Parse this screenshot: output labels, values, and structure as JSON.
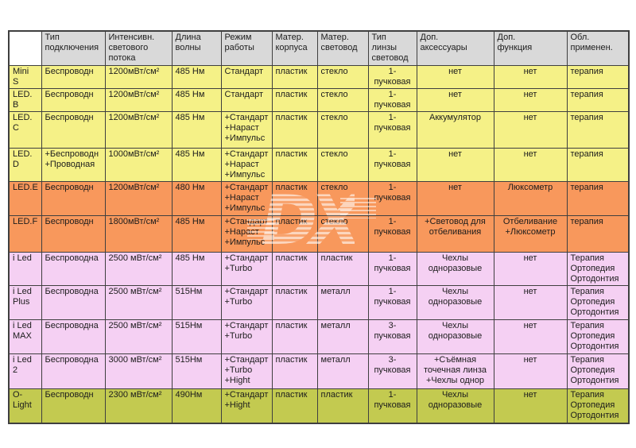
{
  "watermark": {
    "text": "DX"
  },
  "colors": {
    "yellow": "#f5f187",
    "orange": "#f8985c",
    "pink": "#f5d0f3",
    "olive": "#c3ca50",
    "header": "#d9d9d9",
    "border": "#3f3f3f"
  },
  "table": {
    "headers": [
      "",
      "Тип\nподключения",
      "Интенсивн.\nсветового\nпотока",
      "Длина\nволны",
      "Режим\nработы",
      "Матер.\nкорпуса",
      "Матер.\nсветовод",
      "Тип\nлинзы\nсветовод",
      "Доп.\nаксессуары",
      "Доп.\nфункция",
      "Обл.\nприменен."
    ],
    "rows": [
      {
        "color": "yellow",
        "cells": [
          "Mini\nS",
          "Беспроводн",
          "1200мВт/см²",
          "485 Нм",
          "Стандарт",
          "пластик",
          "стекло",
          "1-\nпучковая",
          "нет",
          "нет",
          "терапия"
        ]
      },
      {
        "color": "yellow",
        "cells": [
          "LED.\nB",
          "Беспроводн",
          "1200мВт/см²",
          "485 Нм",
          "Стандарт",
          "пластик",
          "стекло",
          "1-\nпучковая",
          "нет",
          "нет",
          "терапия"
        ]
      },
      {
        "color": "yellow",
        "cells": [
          "LED.\nC",
          "Беспроводн",
          "1200мВт/см²",
          "485 Нм",
          "+Стандарт\n+Нараст\n+Импульс",
          "пластик",
          "стекло",
          "1-\nпучковая",
          "Аккумулятор",
          "нет",
          "терапия"
        ]
      },
      {
        "color": "yellow",
        "cells": [
          "LED.\nD",
          "+Беспроводн\n+Проводная",
          "1000мВт/см²",
          "485 Нм",
          "+Стандарт\n+Нараст\n+Импульс",
          "пластик",
          "стекло",
          "1-\nпучковая",
          "нет",
          "нет",
          "терапия"
        ]
      },
      {
        "color": "orange",
        "cells": [
          "LED.E",
          "Беспроводн",
          "1200мВт/см²",
          "480 Нм",
          "+Стандарт\n+Нараст\n+Импульс",
          "пластик",
          "стекло",
          "1-\nпучковая",
          "нет",
          "Люксометр",
          "терапия"
        ]
      },
      {
        "color": "orange",
        "cells": [
          "LED.F",
          "Беспроводн",
          "1800мВт/см²",
          "485 Нм",
          "+Стандарт\n+Нараст\n+Импульс",
          "пластик",
          "стекло",
          "1-\nпучковая",
          "+Световод для\nотбеливания",
          "Отбеливание\n+Люксометр",
          "терапия"
        ]
      },
      {
        "color": "pink",
        "cells": [
          "i Led",
          "Беспроводна",
          "2500 мВт/см²",
          "485 Нм",
          "+Стандарт\n+Turbo",
          "пластик",
          "пластик",
          "1-\nпучковая",
          "Чехлы\nодноразовые",
          "нет",
          "Терапия\nОртопедия\nОртодонтия"
        ]
      },
      {
        "color": "pink",
        "cells": [
          "i Led\nPlus",
          "Беспроводна",
          "2500 мВт/см²",
          "515Нм",
          "+Стандарт\n+Turbo",
          "пластик",
          "металл",
          "1-\nпучковая",
          "Чехлы\nодноразовые",
          "нет",
          "Терапия\nОртопедия\nОртодонтия"
        ]
      },
      {
        "color": "pink",
        "cells": [
          "i Led\nMAX",
          "Беспроводна",
          "2500 мВт/см²",
          "515Нм",
          "+Стандарт\n+Turbo",
          "пластик",
          "металл",
          "3-\nпучковая",
          "Чехлы\nодноразовые",
          "нет",
          "Терапия\nОртопедия\nОртодонтия"
        ]
      },
      {
        "color": "pink",
        "cells": [
          "i Led\n2",
          "Беспроводна",
          "3000 мВт/см²",
          "515Нм",
          "+Стандарт\n+Turbo\n+Hight",
          "пластик",
          "металл",
          "3-\nпучковая",
          "+Съёмная\nточечная линза\n+Чехлы однор",
          "нет",
          "Терапия\nОртопедия\nОртодонтия"
        ]
      },
      {
        "color": "olive",
        "cells": [
          "O-\nLight",
          "Беспроводн",
          "2300 мВт/см²",
          "490Нм",
          "+Стандарт\n+Hight",
          "пластик",
          "пластик",
          "1-\nпучковая",
          "Чехлы\nодноразовые",
          "нет",
          "Терапия\nОртопедия\nОртодонтия"
        ]
      }
    ]
  },
  "chart_data": {
    "type": "table",
    "columns": [
      "",
      "Тип подключения",
      "Интенсивн. светового потока",
      "Длина волны",
      "Режим работы",
      "Матер. корпуса",
      "Матер. световод",
      "Тип линзы световод",
      "Доп. аксессуары",
      "Доп. функция",
      "Обл. применен."
    ],
    "rows": [
      [
        "Mini S",
        "Беспроводн",
        "1200мВт/см²",
        "485 Нм",
        "Стандарт",
        "пластик",
        "стекло",
        "1-пучковая",
        "нет",
        "нет",
        "терапия"
      ],
      [
        "LED. B",
        "Беспроводн",
        "1200мВт/см²",
        "485 Нм",
        "Стандарт",
        "пластик",
        "стекло",
        "1-пучковая",
        "нет",
        "нет",
        "терапия"
      ],
      [
        "LED. C",
        "Беспроводн",
        "1200мВт/см²",
        "485 Нм",
        "+Стандарт +Нараст +Импульс",
        "пластик",
        "стекло",
        "1-пучковая",
        "Аккумулятор",
        "нет",
        "терапия"
      ],
      [
        "LED. D",
        "+Беспроводн +Проводная",
        "1000мВт/см²",
        "485 Нм",
        "+Стандарт +Нараст +Импульс",
        "пластик",
        "стекло",
        "1-пучковая",
        "нет",
        "нет",
        "терапия"
      ],
      [
        "LED.E",
        "Беспроводн",
        "1200мВт/см²",
        "480 Нм",
        "+Стандарт +Нараст +Импульс",
        "пластик",
        "стекло",
        "1-пучковая",
        "нет",
        "Люксометр",
        "терапия"
      ],
      [
        "LED.F",
        "Беспроводн",
        "1800мВт/см²",
        "485 Нм",
        "+Стандарт +Нараст +Импульс",
        "пластик",
        "стекло",
        "1-пучковая",
        "+Световод для отбеливания",
        "Отбеливание +Люксометр",
        "терапия"
      ],
      [
        "i Led",
        "Беспроводна",
        "2500 мВт/см²",
        "485 Нм",
        "+Стандарт +Turbo",
        "пластик",
        "пластик",
        "1-пучковая",
        "Чехлы одноразовые",
        "нет",
        "Терапия Ортопедия Ортодонтия"
      ],
      [
        "i Led Plus",
        "Беспроводна",
        "2500 мВт/см²",
        "515Нм",
        "+Стандарт +Turbo",
        "пластик",
        "металл",
        "1-пучковая",
        "Чехлы одноразовые",
        "нет",
        "Терапия Ортопедия Ортодонтия"
      ],
      [
        "i Led MAX",
        "Беспроводна",
        "2500 мВт/см²",
        "515Нм",
        "+Стандарт +Turbo",
        "пластик",
        "металл",
        "3-пучковая",
        "Чехлы одноразовые",
        "нет",
        "Терапия Ортопедия Ортодонтия"
      ],
      [
        "i Led 2",
        "Беспроводна",
        "3000 мВт/см²",
        "515Нм",
        "+Стандарт +Turbo +Hight",
        "пластик",
        "металл",
        "3-пучковая",
        "+Съёмная точечная линза +Чехлы однор",
        "нет",
        "Терапия Ортопедия Ортодонтия"
      ],
      [
        "O-Light",
        "Беспроводн",
        "2300 мВт/см²",
        "490Нм",
        "+Стандарт +Hight",
        "пластик",
        "пластик",
        "1-пучковая",
        "Чехлы одноразовые",
        "нет",
        "Терапия Ортопедия Ортодонтия"
      ]
    ]
  }
}
